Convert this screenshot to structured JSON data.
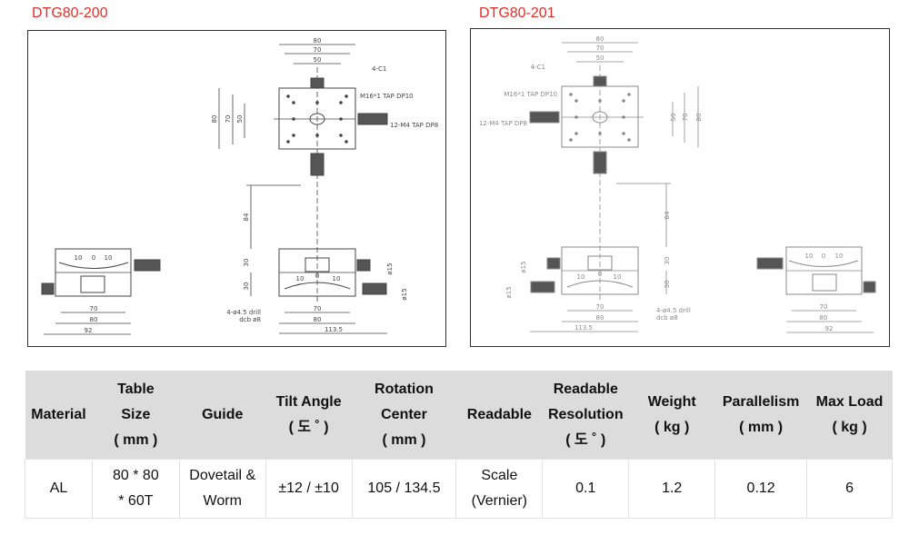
{
  "products": [
    {
      "title": "DTG80-200",
      "mirrored": false,
      "line_color": "#444444"
    },
    {
      "title": "DTG80-201",
      "mirrored": true,
      "line_color": "#8a8a8a"
    }
  ],
  "drawing_labels": {
    "top_w80": "80",
    "top_w70": "70",
    "top_w50": "50",
    "top_h80": "80",
    "top_h70": "70",
    "top_h50": "50",
    "chamfer": "4-C1",
    "center_tap": "M16*1 TAP DP10",
    "holes_tap": "12-M4 TAP DP8",
    "height84": "84",
    "h30_upper": "30",
    "h30_lower": "30",
    "knob_d_upper": "ø15",
    "knob_d_lower": "ø15",
    "scale_left": "10",
    "scale_zero": "0",
    "scale_right": "10",
    "drill": "4-ø4.5 drill",
    "counterbore": "dcb ø8",
    "front_70": "70",
    "front_80": "80",
    "front_113": "113.5",
    "side_70": "70",
    "side_80": "80",
    "side_92": "92"
  },
  "spec_table": {
    "headers": [
      [
        "Material"
      ],
      [
        "Table",
        "Size",
        "( mm )"
      ],
      [
        "Guide"
      ],
      [
        "Tilt Angle",
        "( 도 ˚ )"
      ],
      [
        "Rotation",
        "Center",
        "( mm )"
      ],
      [
        "Readable"
      ],
      [
        "Readable",
        "Resolution",
        "( 도 ˚ )"
      ],
      [
        "Weight",
        "( kg )"
      ],
      [
        "Parallelism",
        "( mm )"
      ],
      [
        "Max Load",
        "( kg )"
      ]
    ],
    "row": [
      [
        "AL"
      ],
      [
        "80 * 80",
        "* 60T"
      ],
      [
        "Dovetail &",
        "Worm"
      ],
      [
        "±12 / ±10"
      ],
      [
        "105  / 134.5"
      ],
      [
        "Scale",
        "(Vernier)"
      ],
      [
        "0.1"
      ],
      [
        "1.2"
      ],
      [
        "0.12"
      ],
      [
        "6"
      ]
    ]
  }
}
